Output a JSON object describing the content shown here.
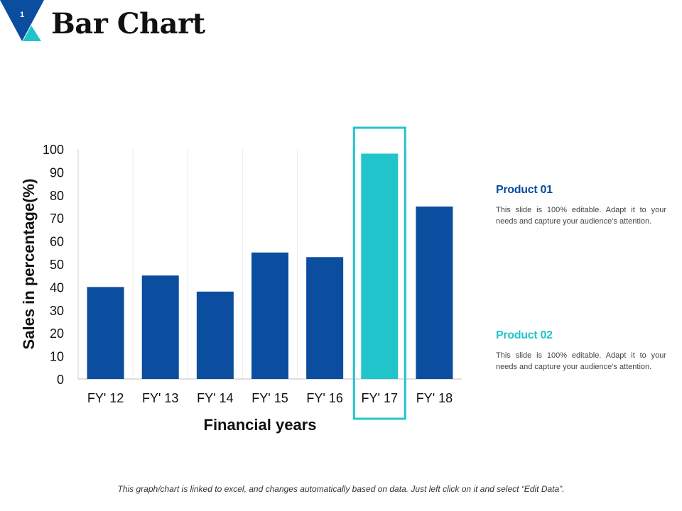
{
  "slide": {
    "number": "1",
    "title": "Bar Chart"
  },
  "colors": {
    "product1": "#0B4D9F",
    "product2": "#22C4CB",
    "badge_dark": "#0B4D9F",
    "badge_light": "#22C4CB"
  },
  "chart_data": {
    "type": "bar",
    "categories": [
      "FY' 12",
      "FY' 13",
      "FY' 14",
      "FY' 15",
      "FY' 16",
      "FY' 17",
      "FY' 18"
    ],
    "values": [
      40,
      45,
      38,
      55,
      53,
      98,
      75
    ],
    "highlight_category": "FY' 17",
    "xlabel": "Financial years",
    "ylabel": "Sales in percentage(%)",
    "ylim": [
      0,
      100
    ],
    "yticks": [
      0,
      10,
      20,
      30,
      40,
      50,
      60,
      70,
      80,
      90,
      100
    ],
    "grid": false
  },
  "products": [
    {
      "title": "Product 01",
      "description": "This slide is 100% editable. Adapt it to your needs and capture your audience's attention."
    },
    {
      "title": "Product 02",
      "description": "This slide is 100% editable. Adapt it to your needs and capture your audience's attention."
    }
  ],
  "footer": {
    "note": "This graph/chart is linked to excel, and changes automatically based on data. Just left click on it and select “Edit Data”."
  }
}
